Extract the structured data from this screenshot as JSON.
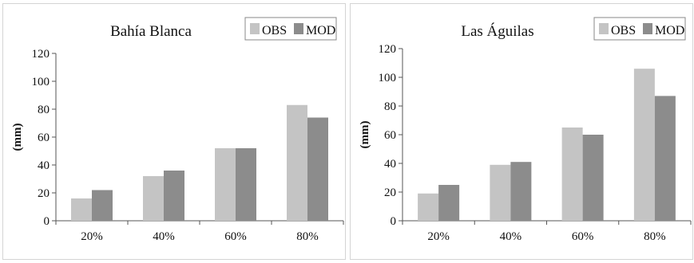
{
  "chart_data": [
    {
      "type": "bar",
      "title": "Bahía Blanca",
      "categories": [
        "20%",
        "40%",
        "60%",
        "80%"
      ],
      "series": [
        {
          "name": "OBS",
          "values": [
            16,
            32,
            52,
            83
          ]
        },
        {
          "name": "MOD",
          "values": [
            22,
            36,
            52,
            74
          ]
        }
      ],
      "ylabel": "(mm)",
      "ylim": [
        0,
        120
      ],
      "yticks": [
        0,
        20,
        40,
        60,
        80,
        100,
        120
      ],
      "grid": false,
      "legend": "top-right"
    },
    {
      "type": "bar",
      "title": "Las Águilas",
      "categories": [
        "20%",
        "40%",
        "60%",
        "80%"
      ],
      "series": [
        {
          "name": "OBS",
          "values": [
            19,
            39,
            65,
            106
          ]
        },
        {
          "name": "MOD",
          "values": [
            25,
            41,
            60,
            87
          ]
        }
      ],
      "ylabel": "(mm)",
      "ylim": [
        0,
        120
      ],
      "yticks": [
        0,
        20,
        40,
        60,
        80,
        100,
        120
      ],
      "grid": false,
      "legend": "top-right"
    }
  ],
  "colors": {
    "OBS": "#c4c4c4",
    "MOD": "#8c8c8c",
    "axis": "#555555"
  }
}
